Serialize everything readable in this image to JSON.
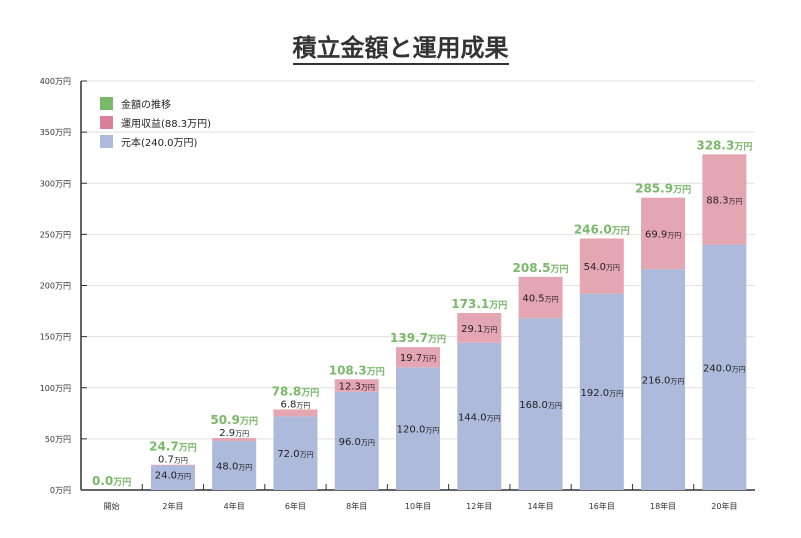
{
  "chart_data": {
    "type": "bar",
    "stacked": true,
    "title": "積立金額と運用成果",
    "categories": [
      "開始",
      "2年目",
      "4年目",
      "6年目",
      "8年目",
      "10年目",
      "12年目",
      "14年目",
      "16年目",
      "18年目",
      "20年目"
    ],
    "series": [
      {
        "name": "元本(240.0万円)",
        "color": "#adbadb",
        "values": [
          0,
          24.0,
          48.0,
          72.0,
          96.0,
          120.0,
          144.0,
          168.0,
          192.0,
          216.0,
          240.0
        ]
      },
      {
        "name": "運用収益(88.3万円)",
        "color": "#e5a6b3",
        "values": [
          0,
          0.7,
          2.9,
          6.8,
          12.3,
          19.7,
          29.1,
          40.5,
          54.0,
          69.9,
          88.3
        ]
      }
    ],
    "totals": {
      "name": "金額の推移",
      "color": "#7ab86a",
      "values": [
        0.0,
        24.7,
        50.9,
        78.8,
        108.3,
        139.7,
        173.1,
        208.5,
        246.0,
        285.9,
        328.3
      ]
    },
    "legend_swatch_colors": [
      "#7ab86a",
      "#dc7f9a",
      "#adbadb"
    ],
    "unit": "万円",
    "ylim": [
      0,
      400
    ],
    "yticks": [
      0,
      50,
      100,
      150,
      200,
      250,
      300,
      350,
      400
    ],
    "grid": true,
    "legend": "top-left"
  }
}
